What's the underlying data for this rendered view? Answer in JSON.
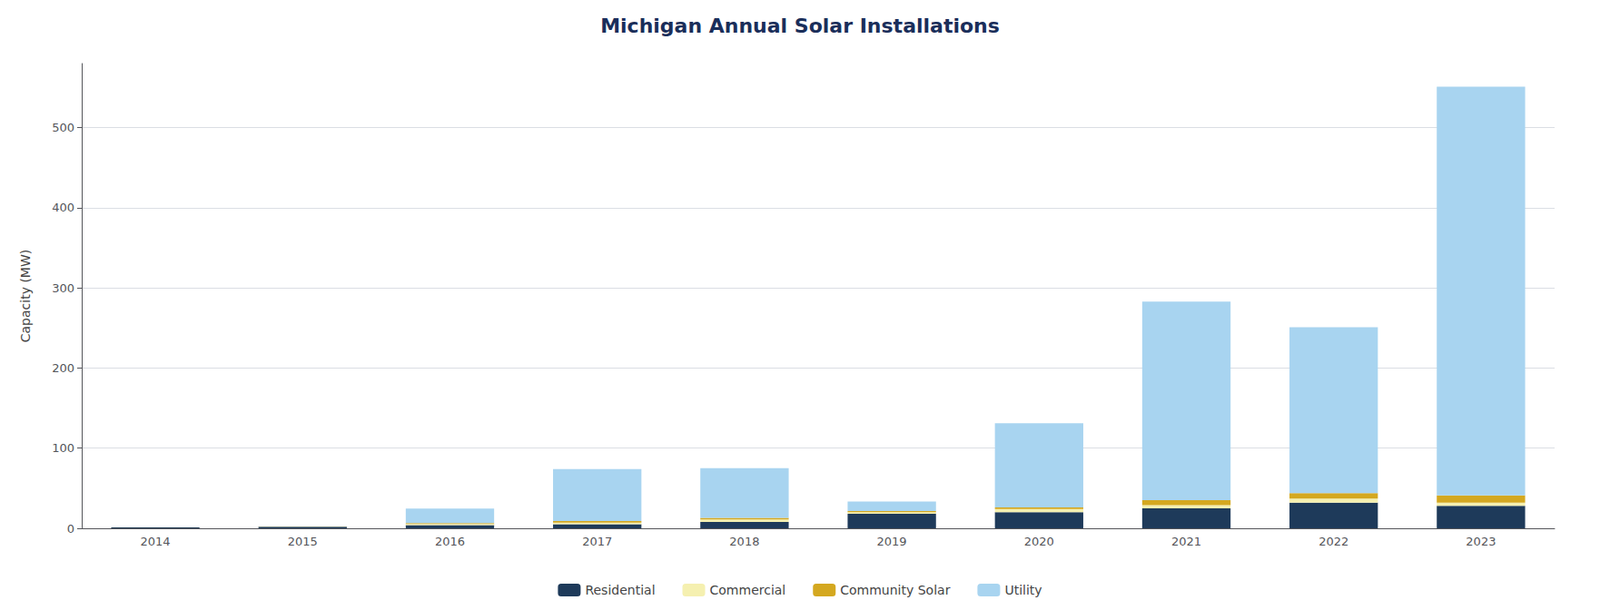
{
  "chart_data": {
    "type": "bar",
    "title": "Michigan Annual Solar Installations",
    "ylabel": "Capacity (MW)",
    "categories": [
      "2014",
      "2015",
      "2016",
      "2017",
      "2018",
      "2019",
      "2020",
      "2021",
      "2022",
      "2023"
    ],
    "series": [
      {
        "name": "Residential",
        "color": "#1e3a5a",
        "values": [
          1,
          2,
          4,
          5,
          8,
          18,
          20,
          25,
          32,
          28
        ]
      },
      {
        "name": "Commercial",
        "color": "#f5f0b0",
        "values": [
          0.5,
          0.5,
          1.5,
          2,
          3,
          2,
          4,
          4,
          5,
          4
        ]
      },
      {
        "name": "Community Solar",
        "color": "#d4a820",
        "values": [
          0,
          0,
          1,
          2,
          2,
          1.5,
          2,
          6,
          7,
          9
        ]
      },
      {
        "name": "Utility",
        "color": "#a8d4f0",
        "values": [
          0,
          0,
          18,
          65,
          62,
          12,
          105,
          248,
          207,
          510
        ]
      }
    ],
    "stacked": true,
    "ylim": [
      0,
      580
    ],
    "yticks": [
      0,
      100,
      200,
      300,
      400,
      500
    ],
    "grid": true,
    "legend": "bottom"
  }
}
